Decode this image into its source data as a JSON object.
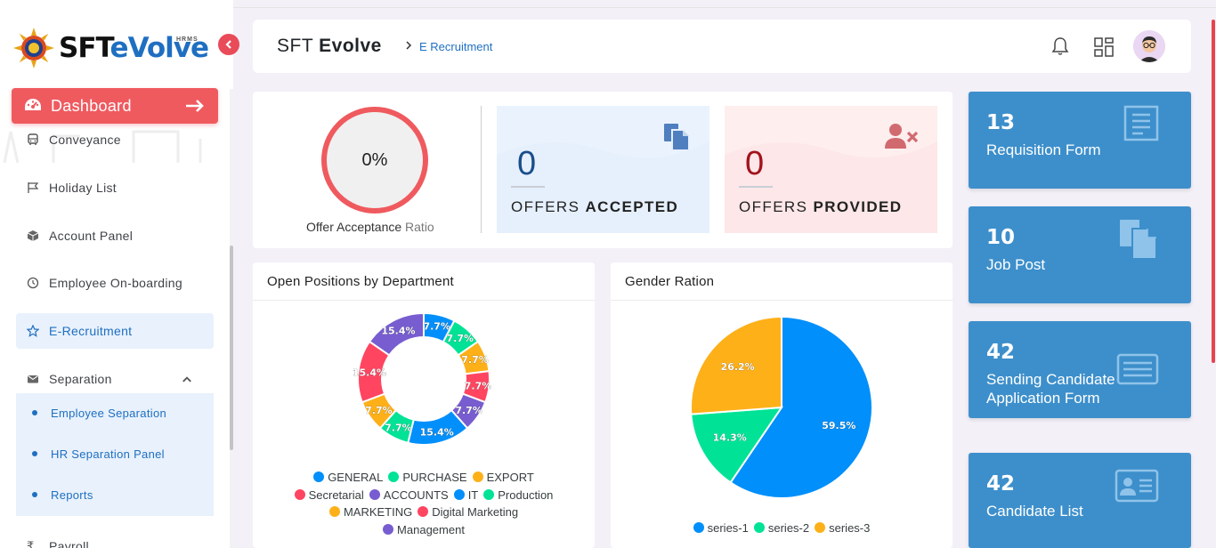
{
  "app": {
    "title_light": "SFT",
    "title_bold": "Evolve",
    "logo_sft": "SFT",
    "logo_evolve": "eVolve",
    "logo_hrms": "HRMS"
  },
  "breadcrumb": {
    "current": "E Recruitment"
  },
  "sidebar": {
    "dashboard": "Dashboard",
    "items": [
      {
        "label": "Conveyance",
        "icon": "bus-icon"
      },
      {
        "label": "Holiday List",
        "icon": "flag-icon"
      },
      {
        "label": "Account Panel",
        "icon": "cube-icon"
      },
      {
        "label": "Employee On-boarding",
        "icon": "clock-icon"
      },
      {
        "label": "E-Recruitment",
        "icon": "star-icon"
      },
      {
        "label": "Separation",
        "icon": "envelope-icon"
      }
    ],
    "sub_items": [
      "Employee Separation",
      "HR Separation Panel",
      "Reports"
    ],
    "payroll": "Payroll"
  },
  "offers": {
    "ratio_value": "0%",
    "ratio_label_main": "Offer Acceptance",
    "ratio_label_sub": "Ratio",
    "accepted": {
      "value": "0",
      "label_light": "OFFERS",
      "label_bold": "ACCEPTED",
      "color": "#1a4e8a"
    },
    "provided": {
      "value": "0",
      "label_light": "OFFERS",
      "label_bold": "PROVIDED",
      "color": "#a3121c"
    }
  },
  "cards": [
    {
      "value": "13",
      "label": "Requisition Form",
      "icon": "form-icon"
    },
    {
      "value": "10",
      "label": "Job Post",
      "icon": "document-icon"
    },
    {
      "value": "42",
      "label": "Sending Candidate Application Form",
      "icon": "list-card-icon"
    },
    {
      "value": "42",
      "label": "Candidate List",
      "icon": "id-card-icon"
    }
  ],
  "charts": {
    "positions_title": "Open Positions by Department",
    "gender_title": "Gender Ration"
  },
  "chart_data": [
    {
      "type": "pie",
      "variant": "donut",
      "title": "Open Positions by Department",
      "categories": [
        "GENERAL",
        "PURCHASE",
        "EXPORT",
        "Secretarial",
        "ACCOUNTS",
        "IT",
        "Production",
        "MARKETING",
        "Digital Marketing",
        "Management"
      ],
      "values": [
        7.7,
        7.7,
        7.7,
        7.7,
        7.7,
        15.4,
        7.7,
        7.7,
        15.4,
        15.4
      ],
      "slice_order": [
        "GENERAL",
        "Production",
        "EXPORT",
        "Secretarial",
        "ACCOUNTS",
        "IT",
        "PURCHASE",
        "MARKETING",
        "Digital Marketing",
        "Management"
      ],
      "slice_values": [
        7.7,
        7.7,
        7.7,
        7.7,
        7.7,
        15.4,
        7.7,
        7.7,
        15.4,
        15.4
      ],
      "labels": [
        "7.7%",
        "7.7%",
        "7.7%",
        "7.7%",
        "7.7%",
        "15.4%",
        "7.7%",
        "7.7%",
        "15.4%",
        "15.4%"
      ],
      "colors": {
        "GENERAL": "#008ffb",
        "PURCHASE": "#00e396",
        "EXPORT": "#feb019",
        "Secretarial": "#ff4560",
        "ACCOUNTS": "#775dd0",
        "IT": "#008ffb",
        "Production": "#00e396",
        "MARKETING": "#feb019",
        "Digital Marketing": "#ff4560",
        "Management": "#775dd0"
      },
      "legend": "bottom"
    },
    {
      "type": "pie",
      "title": "Gender Ration",
      "categories": [
        "series-1",
        "series-2",
        "series-3"
      ],
      "values": [
        59.5,
        14.3,
        26.2
      ],
      "labels": [
        "59.5%",
        "14.3%",
        "26.2%"
      ],
      "colors": [
        "#008ffb",
        "#00e396",
        "#feb019"
      ],
      "legend": "bottom"
    }
  ]
}
